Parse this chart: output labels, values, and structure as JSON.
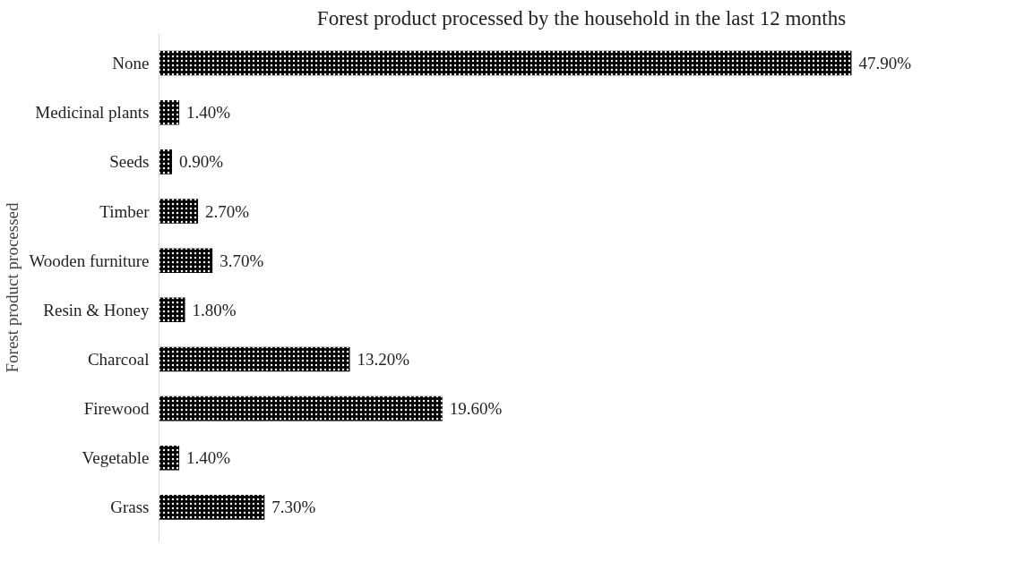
{
  "chart_data": {
    "type": "bar",
    "orientation": "horizontal",
    "title": "Forest product processed by the household in the last 12 months",
    "ylabel": "Forest product processed",
    "categories": [
      "None",
      "Medicinal plants",
      "Seeds",
      "Timber",
      "Wooden furniture",
      "Resin & Honey",
      "Charcoal",
      "Firewood",
      "Vegetable",
      "Grass"
    ],
    "values": [
      47.9,
      1.4,
      0.9,
      2.7,
      3.7,
      1.8,
      13.2,
      19.6,
      1.4,
      7.3
    ],
    "value_labels": [
      "47.90%",
      "1.40%",
      "0.90%",
      "2.70%",
      "3.70%",
      "1.80%",
      "13.20%",
      "19.60%",
      "1.40%",
      "7.30%"
    ],
    "color": "#000000",
    "grid": false,
    "tick_labels": "y"
  }
}
